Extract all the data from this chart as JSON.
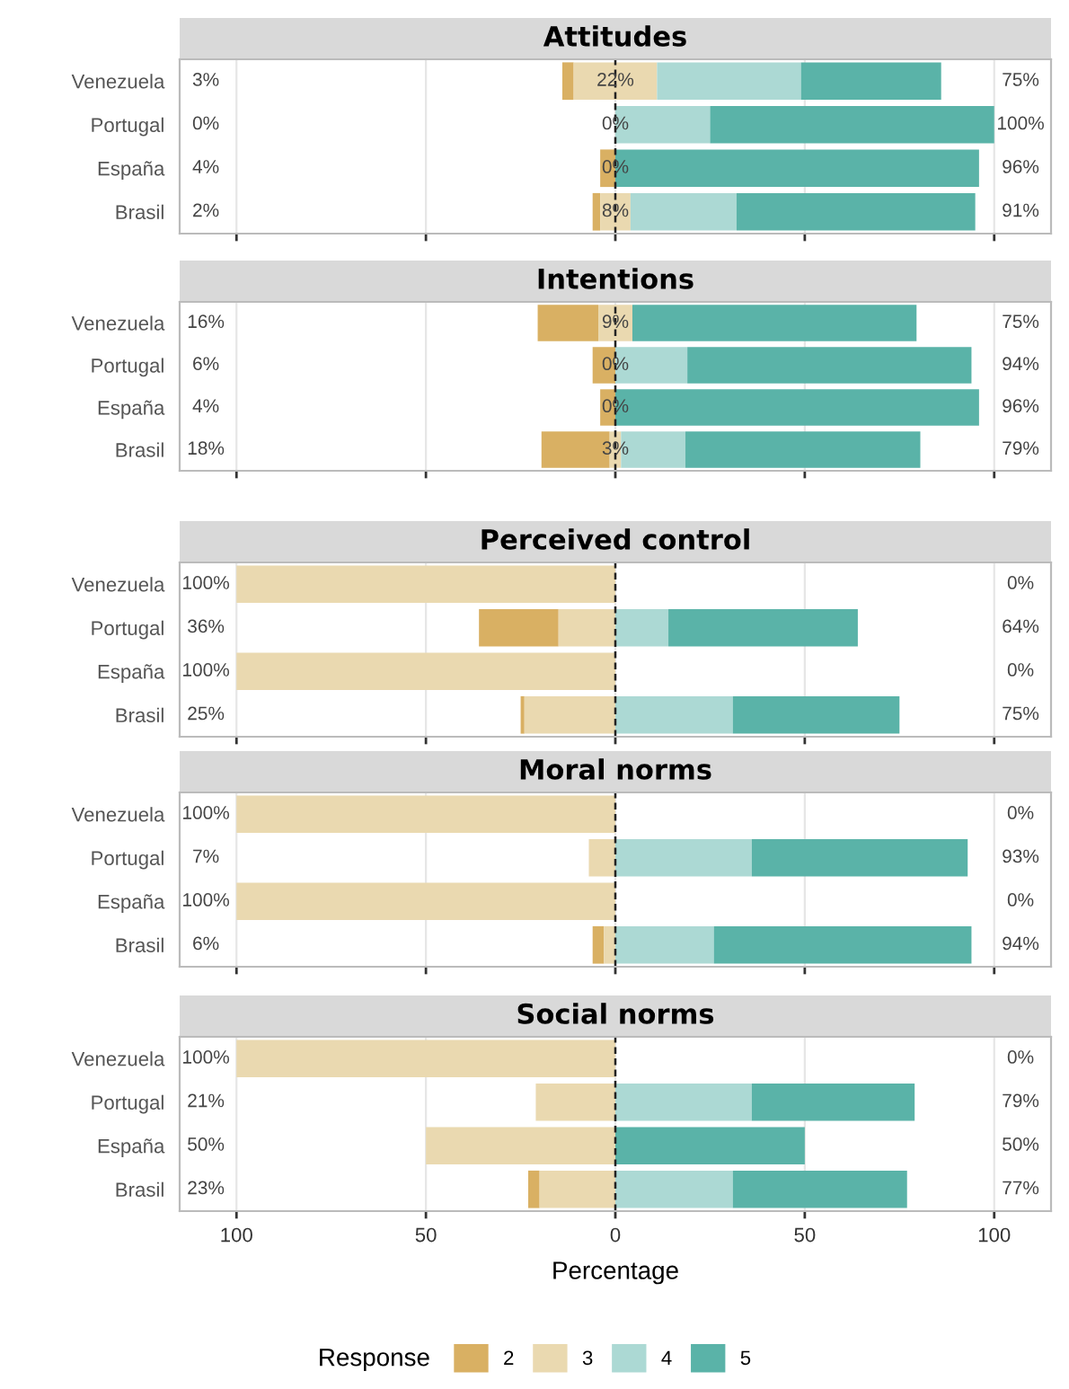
{
  "chart_data": [
    {
      "type": "bar",
      "orientation": "horizontal",
      "title": "Attitudes",
      "categories": [
        "Venezuela",
        "Portugal",
        "España",
        "Brasil"
      ],
      "xlim": [
        -115,
        115
      ],
      "xticks": [
        {
          "value": -100,
          "label": null
        },
        {
          "value": -50,
          "label": null
        },
        {
          "value": 0,
          "label": null
        },
        {
          "value": 50,
          "label": null
        },
        {
          "value": 100,
          "label": null
        }
      ],
      "tick_labels": "y",
      "grid": "x",
      "legend": "bottom",
      "legend_title": "Response",
      "ref_lines": [
        {
          "axis": "x",
          "value": 0,
          "color": "#222222",
          "line_style": "dashed"
        }
      ],
      "series": [
        {
          "name": "2",
          "color": "#d9b063",
          "values": [
            3,
            null,
            4,
            2
          ],
          "base": [
            -14,
            null,
            -4,
            -6
          ]
        },
        {
          "name": "3",
          "color": "#ead9b0",
          "values": [
            22,
            null,
            null,
            8
          ],
          "base": [
            -11,
            null,
            null,
            -4
          ]
        },
        {
          "name": "4",
          "color": "#acd9d4",
          "values": [
            38,
            25,
            null,
            28
          ],
          "base": [
            11,
            0,
            null,
            4
          ]
        },
        {
          "name": "5",
          "color": "#5ab3a8",
          "values": [
            37,
            75,
            96,
            63
          ],
          "base": [
            49,
            25,
            0,
            32
          ]
        }
      ],
      "annotations": [
        "3%",
        "0%",
        "4%",
        "2%",
        "22%",
        "0%",
        "0%",
        "8%",
        "75%",
        "100%",
        "96%",
        "91%"
      ]
    },
    {
      "type": "bar",
      "orientation": "horizontal",
      "title": "Intentions",
      "categories": [
        "Venezuela",
        "Portugal",
        "España",
        "Brasil"
      ],
      "xlim": [
        -115,
        115
      ],
      "xticks": [
        {
          "value": -100,
          "label": null
        },
        {
          "value": -50,
          "label": null
        },
        {
          "value": 0,
          "label": null
        },
        {
          "value": 50,
          "label": null
        },
        {
          "value": 100,
          "label": null
        }
      ],
      "tick_labels": "y",
      "grid": "x",
      "ref_lines": [
        {
          "axis": "x",
          "value": 0,
          "color": "#222222",
          "line_style": "dashed"
        }
      ],
      "series": [
        {
          "name": "2",
          "color": "#d9b063",
          "values": [
            16,
            6,
            4,
            18
          ],
          "base": [
            -20.5,
            -6,
            -4,
            -19.5
          ]
        },
        {
          "name": "3",
          "color": "#ead9b0",
          "values": [
            9,
            null,
            null,
            3
          ],
          "base": [
            -4.5,
            null,
            null,
            -1.5
          ]
        },
        {
          "name": "4",
          "color": "#acd9d4",
          "values": [
            null,
            19,
            null,
            17
          ],
          "base": [
            null,
            0,
            null,
            1.5
          ]
        },
        {
          "name": "5",
          "color": "#5ab3a8",
          "values": [
            75,
            75,
            96,
            62
          ],
          "base": [
            4.5,
            19,
            0,
            18.5
          ]
        }
      ],
      "annotations": [
        "16%",
        "6%",
        "4%",
        "18%",
        "9%",
        "0%",
        "0%",
        "3%",
        "75%",
        "94%",
        "96%",
        "79%"
      ]
    },
    {
      "type": "bar",
      "orientation": "horizontal",
      "title": "Perceived control",
      "categories": [
        "Venezuela",
        "Portugal",
        "España",
        "Brasil"
      ],
      "xlim": [
        -115,
        115
      ],
      "xticks": [
        {
          "value": -100,
          "label": null
        },
        {
          "value": -50,
          "label": null
        },
        {
          "value": 0,
          "label": null
        },
        {
          "value": 50,
          "label": null
        },
        {
          "value": 100,
          "label": null
        }
      ],
      "tick_labels": "y",
      "grid": "x",
      "ref_lines": [
        {
          "axis": "x",
          "value": 0,
          "color": "#222222",
          "line_style": "dashed"
        }
      ],
      "series": [
        {
          "name": "2",
          "color": "#d9b063",
          "values": [
            null,
            21,
            null,
            1
          ],
          "base": [
            null,
            -36,
            null,
            -25
          ]
        },
        {
          "name": "3",
          "color": "#ead9b0",
          "values": [
            100,
            15,
            100,
            24
          ],
          "base": [
            -100,
            -15,
            -100,
            -24
          ]
        },
        {
          "name": "4",
          "color": "#acd9d4",
          "values": [
            null,
            14,
            null,
            31
          ],
          "base": [
            null,
            0,
            null,
            0
          ]
        },
        {
          "name": "5",
          "color": "#5ab3a8",
          "values": [
            null,
            50,
            null,
            44
          ],
          "base": [
            null,
            14,
            null,
            31
          ]
        }
      ],
      "annotations": [
        "100%",
        "36%",
        "100%",
        "25%",
        "0%",
        "64%",
        "0%",
        "75%"
      ]
    },
    {
      "type": "bar",
      "orientation": "horizontal",
      "title": "Moral norms",
      "categories": [
        "Venezuela",
        "Portugal",
        "España",
        "Brasil"
      ],
      "xlim": [
        -115,
        115
      ],
      "xticks": [
        {
          "value": -100,
          "label": null
        },
        {
          "value": -50,
          "label": null
        },
        {
          "value": 0,
          "label": null
        },
        {
          "value": 50,
          "label": null
        },
        {
          "value": 100,
          "label": null
        }
      ],
      "tick_labels": "y",
      "grid": "x",
      "ref_lines": [
        {
          "axis": "x",
          "value": 0,
          "color": "#222222",
          "line_style": "dashed"
        }
      ],
      "series": [
        {
          "name": "2",
          "color": "#d9b063",
          "values": [
            null,
            null,
            null,
            3
          ],
          "base": [
            null,
            null,
            null,
            -6
          ]
        },
        {
          "name": "3",
          "color": "#ead9b0",
          "values": [
            100,
            7,
            100,
            3
          ],
          "base": [
            -100,
            -7,
            -100,
            -3
          ]
        },
        {
          "name": "4",
          "color": "#acd9d4",
          "values": [
            null,
            36,
            null,
            26
          ],
          "base": [
            null,
            0,
            null,
            0
          ]
        },
        {
          "name": "5",
          "color": "#5ab3a8",
          "values": [
            null,
            57,
            null,
            68
          ],
          "base": [
            null,
            36,
            null,
            26
          ]
        }
      ],
      "annotations": [
        "100%",
        "7%",
        "100%",
        "6%",
        "0%",
        "93%",
        "0%",
        "94%"
      ]
    },
    {
      "type": "bar",
      "orientation": "horizontal",
      "title": "Social norms",
      "categories": [
        "Venezuela",
        "Portugal",
        "España",
        "Brasil"
      ],
      "xlim": [
        -115,
        115
      ],
      "xticks": [
        {
          "value": -100,
          "label": "100"
        },
        {
          "value": -50,
          "label": "50"
        },
        0,
        {
          "value": 50,
          "label": "50"
        },
        {
          "value": 100,
          "label": "100"
        }
      ],
      "grid": "x",
      "xlabel": "Percentage",
      "ref_lines": [
        {
          "axis": "x",
          "value": 0,
          "color": "#222222",
          "line_style": "dashed"
        }
      ],
      "series": [
        {
          "name": "2",
          "color": "#d9b063",
          "values": [
            null,
            null,
            null,
            3
          ],
          "base": [
            null,
            null,
            null,
            -23
          ]
        },
        {
          "name": "3",
          "color": "#ead9b0",
          "values": [
            100,
            21,
            50,
            20
          ],
          "base": [
            -100,
            -21,
            -50,
            -20
          ]
        },
        {
          "name": "4",
          "color": "#acd9d4",
          "values": [
            null,
            36,
            null,
            31
          ],
          "base": [
            null,
            0,
            null,
            0
          ]
        },
        {
          "name": "5",
          "color": "#5ab3a8",
          "values": [
            null,
            43,
            50,
            46
          ],
          "base": [
            null,
            36,
            0,
            31
          ]
        }
      ],
      "annotations": [
        "100%",
        "21%",
        "50%",
        "23%",
        "0%",
        "79%",
        "50%",
        "77%"
      ]
    }
  ]
}
